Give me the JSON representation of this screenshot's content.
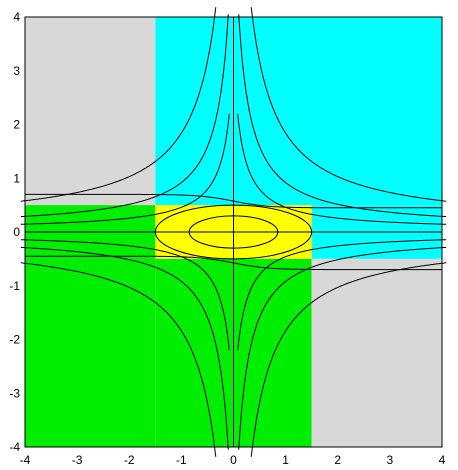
{
  "chart_data": {
    "type": "heatmap",
    "subtype": "contour plot with filled regions",
    "title": "",
    "xlabel": "",
    "ylabel": "",
    "xlim": [
      -4,
      4
    ],
    "ylim": [
      -4,
      4
    ],
    "x_ticks": [
      -4,
      -3,
      -2,
      -1,
      0,
      1,
      2,
      3,
      4
    ],
    "y_ticks": [
      -4,
      -3,
      -2,
      -1,
      0,
      1,
      2,
      3,
      4
    ],
    "x_tick_labels": [
      "-4",
      "-3",
      "-2",
      "-1",
      "0",
      "1",
      "2",
      "3",
      "4"
    ],
    "y_tick_labels": [
      "-4",
      "-3",
      "-2",
      "-1",
      "0",
      "1",
      "2",
      "3",
      "4"
    ],
    "axes_lines": [
      "x=0",
      "y=0"
    ],
    "grid": false,
    "colors": {
      "gray": "#d8d8d8",
      "cyan": "#00ffff",
      "green": "#00ee00",
      "yellow": "#ffff00",
      "contour": "#000000"
    },
    "regions": [
      {
        "color": "gray",
        "x": [
          -4,
          -1.5
        ],
        "y": [
          0.5,
          4
        ]
      },
      {
        "color": "cyan",
        "x": [
          -1.5,
          4
        ],
        "y": [
          0.5,
          4
        ]
      },
      {
        "color": "cyan",
        "x": [
          1.5,
          4
        ],
        "y": [
          -0.5,
          0.5
        ]
      },
      {
        "color": "green",
        "x": [
          -4,
          -1.5
        ],
        "y": [
          -4,
          0.5
        ]
      },
      {
        "color": "green",
        "x": [
          -1.5,
          1.5
        ],
        "y": [
          -4,
          -0.5
        ]
      },
      {
        "color": "gray",
        "x": [
          1.5,
          4
        ],
        "y": [
          -4,
          -0.5
        ]
      },
      {
        "color": "yellow",
        "x": [
          -1.5,
          1.5
        ],
        "y": [
          -0.5,
          0.5
        ]
      }
    ],
    "ellipses": [
      {
        "cx": 0,
        "cy": 0,
        "rx": 1.5,
        "ry": 0.5
      },
      {
        "cx": 0,
        "cy": 0,
        "rx": 0.85,
        "ry": 0.3
      }
    ],
    "hyperbola_levels": [
      0.5,
      1.0,
      2.0
    ]
  }
}
